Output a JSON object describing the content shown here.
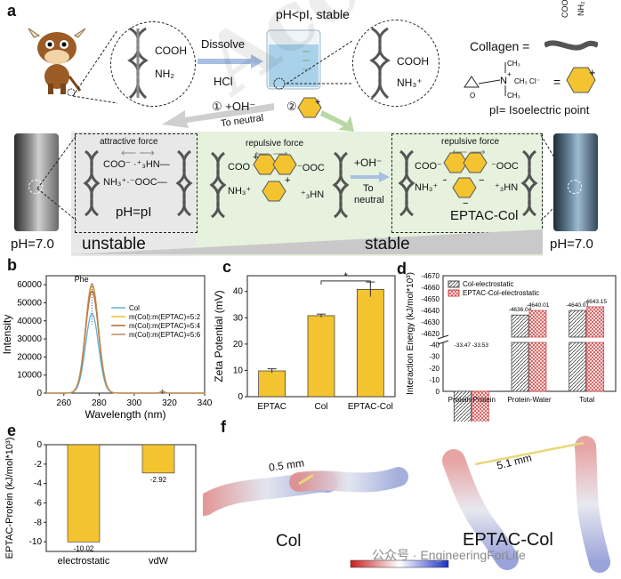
{
  "watermark": "Accepted Manuscript",
  "panel_a": {
    "label": "a",
    "top_labels": {
      "dissolve": "Dissolve",
      "hcl": "HCl",
      "ph_lt_pi": "pH<pI, stable",
      "step1": "① +OH⁻",
      "step2": "②",
      "to_neutral": "To neutral"
    },
    "chem": {
      "cooh": "COOH",
      "nh2": "NH₂",
      "nh3": "NH₃⁺"
    },
    "legend": {
      "collagen": "Collagen  =",
      "cooh_v": "COOH",
      "nh2_v": "NH₂",
      "eq": "=",
      "pi_def": "pI= Isoelectric point"
    },
    "boxes": {
      "left_force": "attractive force",
      "left_ph": "pH=pI",
      "mid_force": "repulsive force",
      "mid_step": "+OH⁻",
      "mid_to": "To",
      "mid_neutral": "neutral",
      "right_force": "repulsive force",
      "right_name": "EPTAC-Col"
    },
    "bottom": {
      "ph_left": "pH=7.0",
      "unstable": "unstable",
      "stable": "stable",
      "ph_right": "pH=7.0"
    }
  },
  "chart_data": [
    {
      "panel": "b",
      "type": "line",
      "xlabel": "Wavelength (nm)",
      "ylabel": "Intensity",
      "xlim": [
        250,
        340
      ],
      "ylim": [
        0,
        65000
      ],
      "xticks": [
        260,
        280,
        300,
        320,
        340
      ],
      "yticks": [
        0,
        10000,
        20000,
        30000,
        40000,
        50000,
        60000
      ],
      "annotation": "Phe",
      "series": [
        {
          "name": "Col",
          "color": "#5fb2d3",
          "peak_x": 276,
          "peak_y": 44000,
          "minor_y": 300
        },
        {
          "name": "m(Col):m(EPTAC)=5:2",
          "color": "#f0c12a",
          "peak_x": 276,
          "peak_y": 59000,
          "minor_y": 900
        },
        {
          "name": "m(Col):m(EPTAC)=5:4",
          "color": "#b5652c",
          "peak_x": 276,
          "peak_y": 56500,
          "minor_y": 700
        },
        {
          "name": "m(Col):m(EPTAC)=5:6",
          "color": "#c08a5a",
          "peak_x": 276,
          "peak_y": 60500,
          "minor_y": 1200
        }
      ]
    },
    {
      "panel": "c",
      "type": "bar",
      "ylabel": "Zeta Potential (mV)",
      "categories": [
        "EPTAC",
        "Col",
        "EPTAC-Col"
      ],
      "values": [
        9.8,
        30.8,
        40.8
      ],
      "errors": [
        0.8,
        0.6,
        2.8
      ],
      "ylim": [
        0,
        46
      ],
      "yticks": [
        0,
        10,
        20,
        30,
        40
      ],
      "significance": "*",
      "color": "#f4c430"
    },
    {
      "panel": "d",
      "type": "bar",
      "ylabel": "Interaction Energy (kJ/mol*10³)",
      "categories": [
        "Protein-Protein",
        "Protein-Water",
        "Total"
      ],
      "series": [
        {
          "name": "Col-electrostatic",
          "values": [
            -33.47,
            -4636.04,
            -4640.01
          ],
          "labels": [
            "-33.47",
            "-4636.04",
            "-4640.01"
          ]
        },
        {
          "name": "EPTAC-Col-electrostatic",
          "values": [
            -33.53,
            -4640.01,
            -4643.15
          ],
          "labels": [
            "-33.53",
            "-4640.01",
            "-4643.15"
          ]
        }
      ],
      "yticks_upper": [
        -4670,
        -4660,
        -4650,
        -4640,
        -4630,
        -4620
      ],
      "yticks_lower": [
        -40,
        -30,
        -20,
        -10,
        0
      ],
      "broken_axis": true
    },
    {
      "panel": "e",
      "type": "bar",
      "ylabel": "EPTAC-Protein (kJ/mol*10³)",
      "categories": [
        "electrostatic",
        "vdW"
      ],
      "values": [
        -10.02,
        -2.92
      ],
      "labels": [
        "-10.02",
        "-2.92"
      ],
      "ylim": [
        0,
        -11
      ],
      "yticks": [
        0,
        -2,
        -4,
        -6,
        -8,
        -10
      ],
      "color": "#f4c430"
    }
  ],
  "panel_f": {
    "label": "f",
    "dist_left": "0.5 mm",
    "dist_right": "5.1 mm",
    "name_left": "Col",
    "name_right": "EPTAC-Col",
    "credit": "公众号 · EngineeringForLife"
  },
  "panel_labels": {
    "b": "b",
    "c": "c",
    "d": "d",
    "e": "e",
    "f": "f"
  },
  "colors": {
    "yellow": "#f4c430",
    "stable_bg": "#e6f1de",
    "unstable_bg": "#e8e8e8",
    "hatch_red": "#d14a4a"
  }
}
